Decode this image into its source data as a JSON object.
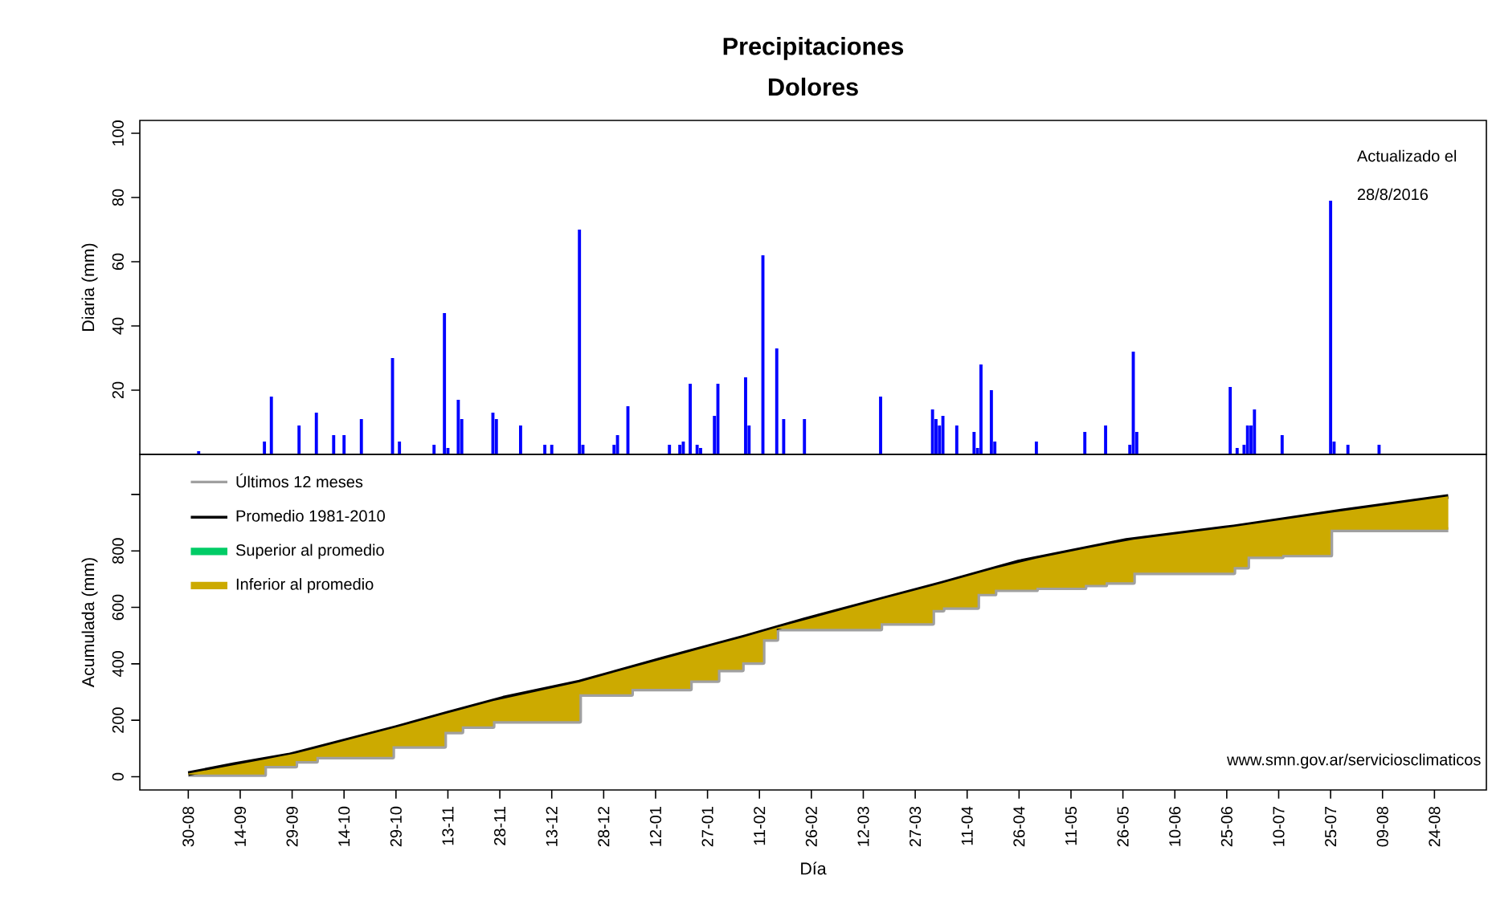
{
  "chart_data": [
    {
      "type": "bar",
      "title": "Precipitaciones",
      "subtitle": "Dolores",
      "ylabel": "Diaria (mm)",
      "color": "#0000ff",
      "x": [
        "2015-09-02",
        "2015-09-21",
        "2015-09-23",
        "2015-10-01",
        "2015-10-06",
        "2015-10-11",
        "2015-10-14",
        "2015-10-19",
        "2015-10-28",
        "2015-10-30",
        "2015-11-09",
        "2015-11-12",
        "2015-11-13",
        "2015-11-16",
        "2015-11-17",
        "2015-11-26",
        "2015-11-27",
        "2015-12-04",
        "2015-12-11",
        "2015-12-13",
        "2015-12-21",
        "2015-12-22",
        "2015-12-31",
        "2016-01-01",
        "2016-01-04",
        "2016-01-16",
        "2016-01-19",
        "2016-01-20",
        "2016-01-22",
        "2016-01-24",
        "2016-01-25",
        "2016-01-29",
        "2016-01-30",
        "2016-02-07",
        "2016-02-08",
        "2016-02-12",
        "2016-02-16",
        "2016-02-18",
        "2016-02-24",
        "2016-03-17",
        "2016-04-01",
        "2016-04-02",
        "2016-04-03",
        "2016-04-04",
        "2016-04-08",
        "2016-04-13",
        "2016-04-14",
        "2016-04-15",
        "2016-04-18",
        "2016-04-19",
        "2016-05-01",
        "2016-05-15",
        "2016-05-21",
        "2016-05-28",
        "2016-05-29",
        "2016-05-30",
        "2016-06-26",
        "2016-06-28",
        "2016-06-30",
        "2016-07-01",
        "2016-07-02",
        "2016-07-03",
        "2016-07-11",
        "2016-07-25",
        "2016-07-26",
        "2016-07-30",
        "2016-08-08"
      ],
      "values": [
        1,
        4,
        18,
        9,
        13,
        6,
        6,
        11,
        30,
        4,
        3,
        44,
        2,
        17,
        11,
        13,
        11,
        9,
        3,
        3,
        70,
        3,
        3,
        6,
        15,
        3,
        3,
        4,
        22,
        3,
        2,
        12,
        22,
        24,
        9,
        62,
        33,
        11,
        11,
        18,
        14,
        11,
        9,
        12,
        9,
        7,
        2,
        28,
        20,
        4,
        4,
        7,
        9,
        3,
        32,
        7,
        21,
        2,
        3,
        9,
        9,
        14,
        6,
        79,
        4,
        3,
        3
      ],
      "xlim": [
        "2015-08-16",
        "2016-09-08"
      ],
      "ylim": [
        0,
        104
      ],
      "yticks": [
        20,
        40,
        60,
        80,
        100
      ],
      "tick_labels": "y",
      "annotations": [
        "Actualizado el",
        "28/8/2016"
      ]
    },
    {
      "type": "line",
      "xlabel": "Día",
      "ylabel": "Acumulada (mm)",
      "legend": "top left",
      "xlim": [
        "2015-08-16",
        "2016-09-08"
      ],
      "ylim": [
        -47,
        1142
      ],
      "yticks": [
        0,
        200,
        400,
        600,
        800,
        {
          "value": 1000,
          "label": null
        }
      ],
      "xticks": [
        {
          "value": "2015-08-30",
          "label": "30-08"
        },
        {
          "value": "2015-09-14",
          "label": "14-09"
        },
        {
          "value": "2015-09-29",
          "label": "29-09"
        },
        {
          "value": "2015-10-14",
          "label": "14-10"
        },
        {
          "value": "2015-10-29",
          "label": "29-10"
        },
        {
          "value": "2015-11-13",
          "label": "13-11"
        },
        {
          "value": "2015-11-28",
          "label": "28-11"
        },
        {
          "value": "2015-12-13",
          "label": "13-12"
        },
        {
          "value": "2015-12-28",
          "label": "28-12"
        },
        {
          "value": "2016-01-12",
          "label": "12-01"
        },
        {
          "value": "2016-01-27",
          "label": "27-01"
        },
        {
          "value": "2016-02-11",
          "label": "11-02"
        },
        {
          "value": "2016-02-26",
          "label": "26-02"
        },
        {
          "value": "2016-03-12",
          "label": "12-03"
        },
        {
          "value": "2016-03-27",
          "label": "27-03"
        },
        {
          "value": "2016-04-11",
          "label": "11-04"
        },
        {
          "value": "2016-04-26",
          "label": "26-04"
        },
        {
          "value": "2016-05-11",
          "label": "11-05"
        },
        {
          "value": "2016-05-26",
          "label": "26-05"
        },
        {
          "value": "2016-06-10",
          "label": "10-06"
        },
        {
          "value": "2016-06-25",
          "label": "25-06"
        },
        {
          "value": "2016-07-10",
          "label": "10-07"
        },
        {
          "value": "2016-07-25",
          "label": "25-07"
        },
        {
          "value": "2016-08-09",
          "label": "09-08"
        },
        {
          "value": "2016-08-24",
          "label": "24-08"
        }
      ],
      "annotations": [
        "www.smn.gov.ar/serviciosclimaticos"
      ],
      "series": [
        {
          "name": "Últimos 12 meses",
          "type": "line",
          "color": "#a0a0a0",
          "x": [
            "2015-08-30",
            "2015-09-21",
            "2015-09-21",
            "2015-09-30",
            "2015-09-30",
            "2015-10-06",
            "2015-10-06",
            "2015-10-28",
            "2015-10-28",
            "2015-11-12",
            "2015-11-12",
            "2015-11-17",
            "2015-11-17",
            "2015-11-26",
            "2015-11-26",
            "2015-12-21",
            "2015-12-21",
            "2016-01-05",
            "2016-01-05",
            "2016-01-22",
            "2016-01-22",
            "2016-01-30",
            "2016-01-30",
            "2016-02-06",
            "2016-02-06",
            "2016-02-12",
            "2016-02-12",
            "2016-02-16",
            "2016-02-16",
            "2016-03-17",
            "2016-03-17",
            "2016-04-01",
            "2016-04-01",
            "2016-04-04",
            "2016-04-04",
            "2016-04-14",
            "2016-04-14",
            "2016-04-19",
            "2016-04-19",
            "2016-05-01",
            "2016-05-01",
            "2016-05-15",
            "2016-05-15",
            "2016-05-21",
            "2016-05-21",
            "2016-05-29",
            "2016-05-29",
            "2016-06-27",
            "2016-06-27",
            "2016-07-01",
            "2016-07-01",
            "2016-07-11",
            "2016-07-11",
            "2016-07-25",
            "2016-07-25",
            "2016-08-28"
          ],
          "values": [
            8,
            8,
            38,
            38,
            55,
            55,
            70,
            70,
            108,
            108,
            159,
            159,
            178,
            178,
            197,
            197,
            292,
            292,
            311,
            311,
            341,
            341,
            379,
            379,
            405,
            405,
            487,
            487,
            524,
            524,
            544,
            544,
            591,
            591,
            600,
            600,
            648,
            648,
            663,
            663,
            670,
            670,
            680,
            680,
            689,
            689,
            723,
            723,
            743,
            743,
            780,
            780,
            786,
            786,
            875,
            875
          ]
        },
        {
          "name": "Promedio 1981-2010",
          "type": "line",
          "color": "#000000",
          "x": [
            "2015-08-30",
            "2015-09-12",
            "2015-09-28",
            "2015-10-29",
            "2015-11-13",
            "2015-11-29",
            "2015-12-21",
            "2016-01-14",
            "2016-02-07",
            "2016-02-24",
            "2016-04-04",
            "2016-04-26",
            "2016-05-27",
            "2016-06-27",
            "2016-07-28",
            "2016-08-28"
          ],
          "values": [
            11,
            42,
            76,
            174,
            225,
            278,
            335,
            417,
            496,
            556,
            686,
            761,
            837,
            885,
            941,
            993
          ]
        },
        {
          "name": "Superior al promedio",
          "type": "area",
          "color": "#00cc66"
        },
        {
          "name": "Inferior al promedio",
          "type": "area",
          "color": "#ccaa00",
          "x": [
            "2015-08-30",
            "2015-09-21",
            "2015-09-21",
            "2015-09-30",
            "2015-09-30",
            "2015-10-06",
            "2015-10-06",
            "2015-10-28",
            "2015-10-28",
            "2015-11-12",
            "2015-11-12",
            "2015-11-17",
            "2015-11-17",
            "2015-11-26",
            "2015-11-26",
            "2015-12-21",
            "2015-12-21",
            "2016-01-05",
            "2016-01-05",
            "2016-01-22",
            "2016-01-22",
            "2016-01-30",
            "2016-01-30",
            "2016-02-06",
            "2016-02-06",
            "2016-02-12",
            "2016-02-12",
            "2016-02-16",
            "2016-02-16",
            "2016-03-17",
            "2016-03-17",
            "2016-04-01",
            "2016-04-01",
            "2016-04-04",
            "2016-04-04",
            "2016-04-14",
            "2016-04-14",
            "2016-04-19",
            "2016-04-19",
            "2016-05-01",
            "2016-05-01",
            "2016-05-15",
            "2016-05-15",
            "2016-05-21",
            "2016-05-21",
            "2016-05-29",
            "2016-05-29",
            "2016-06-27",
            "2016-06-27",
            "2016-07-01",
            "2016-07-01",
            "2016-07-11",
            "2016-07-11",
            "2016-07-25",
            "2016-07-25",
            "2016-08-28"
          ],
          "values": [
            null,
            null,
            null,
            null,
            null,
            null,
            null,
            null,
            null,
            null,
            null,
            null,
            null,
            null,
            null,
            null,
            null,
            null,
            null,
            null,
            null,
            null,
            null,
            null,
            null,
            null,
            null,
            null,
            null,
            null,
            null,
            null,
            null,
            null,
            null,
            null,
            null,
            null,
            null,
            null,
            null,
            null,
            null,
            null,
            null,
            null,
            null,
            null,
            null,
            null,
            null,
            null,
            null,
            null,
            null,
            null
          ],
          "upper": [
            11,
            61,
            61,
            82,
            82,
            101,
            101,
            171,
            171,
            222,
            222,
            238,
            238,
            268,
            268,
            335,
            335,
            386,
            386,
            443,
            443,
            470,
            470,
            493,
            493,
            514,
            514,
            528,
            528,
            628,
            628,
            676,
            676,
            686,
            686,
            720,
            720,
            737,
            737,
            773,
            773,
            808,
            808,
            822,
            822,
            840,
            840,
            885,
            885,
            892,
            892,
            910,
            910,
            935,
            935,
            993
          ],
          "lower": [
            8,
            8,
            38,
            38,
            55,
            55,
            70,
            70,
            108,
            108,
            159,
            159,
            178,
            178,
            197,
            197,
            292,
            292,
            311,
            311,
            341,
            341,
            379,
            379,
            405,
            405,
            487,
            487,
            524,
            524,
            544,
            544,
            591,
            591,
            600,
            600,
            648,
            648,
            663,
            663,
            670,
            670,
            680,
            680,
            689,
            689,
            723,
            723,
            743,
            743,
            780,
            780,
            786,
            786,
            875,
            875
          ]
        }
      ]
    }
  ]
}
